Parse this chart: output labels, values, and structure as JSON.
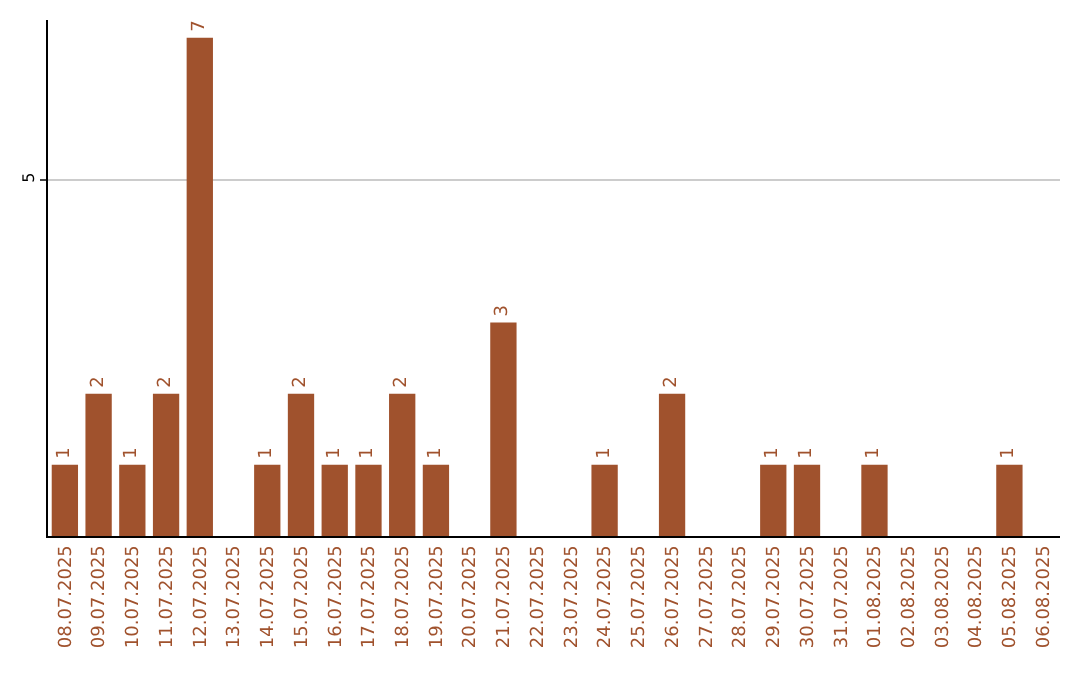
{
  "chart_data": {
    "type": "bar",
    "categories": [
      "08.07.2025",
      "09.07.2025",
      "10.07.2025",
      "11.07.2025",
      "12.07.2025",
      "13.07.2025",
      "14.07.2025",
      "15.07.2025",
      "16.07.2025",
      "17.07.2025",
      "18.07.2025",
      "19.07.2025",
      "20.07.2025",
      "21.07.2025",
      "22.07.2025",
      "23.07.2025",
      "24.07.2025",
      "25.07.2025",
      "26.07.2025",
      "27.07.2025",
      "28.07.2025",
      "29.07.2025",
      "30.07.2025",
      "31.07.2025",
      "01.08.2025",
      "02.08.2025",
      "03.08.2025",
      "04.08.2025",
      "05.08.2025",
      "06.08.2025"
    ],
    "values": [
      1,
      2,
      1,
      2,
      7,
      0,
      1,
      2,
      1,
      1,
      2,
      1,
      0,
      3,
      0,
      0,
      1,
      0,
      2,
      0,
      0,
      1,
      1,
      0,
      1,
      0,
      0,
      0,
      1,
      0
    ],
    "value_labels": [
      "1",
      "2",
      "1",
      "2",
      "7",
      null,
      "1",
      "2",
      "1",
      "1",
      "2",
      "1",
      null,
      "3",
      null,
      null,
      "1",
      null,
      "2",
      null,
      null,
      "1",
      "1",
      null,
      "1",
      null,
      null,
      null,
      "1",
      null
    ],
    "color": "#a0522d",
    "ylim": [
      0,
      7.25
    ],
    "yticks": [
      5
    ],
    "grid": "y",
    "legend": false
  }
}
